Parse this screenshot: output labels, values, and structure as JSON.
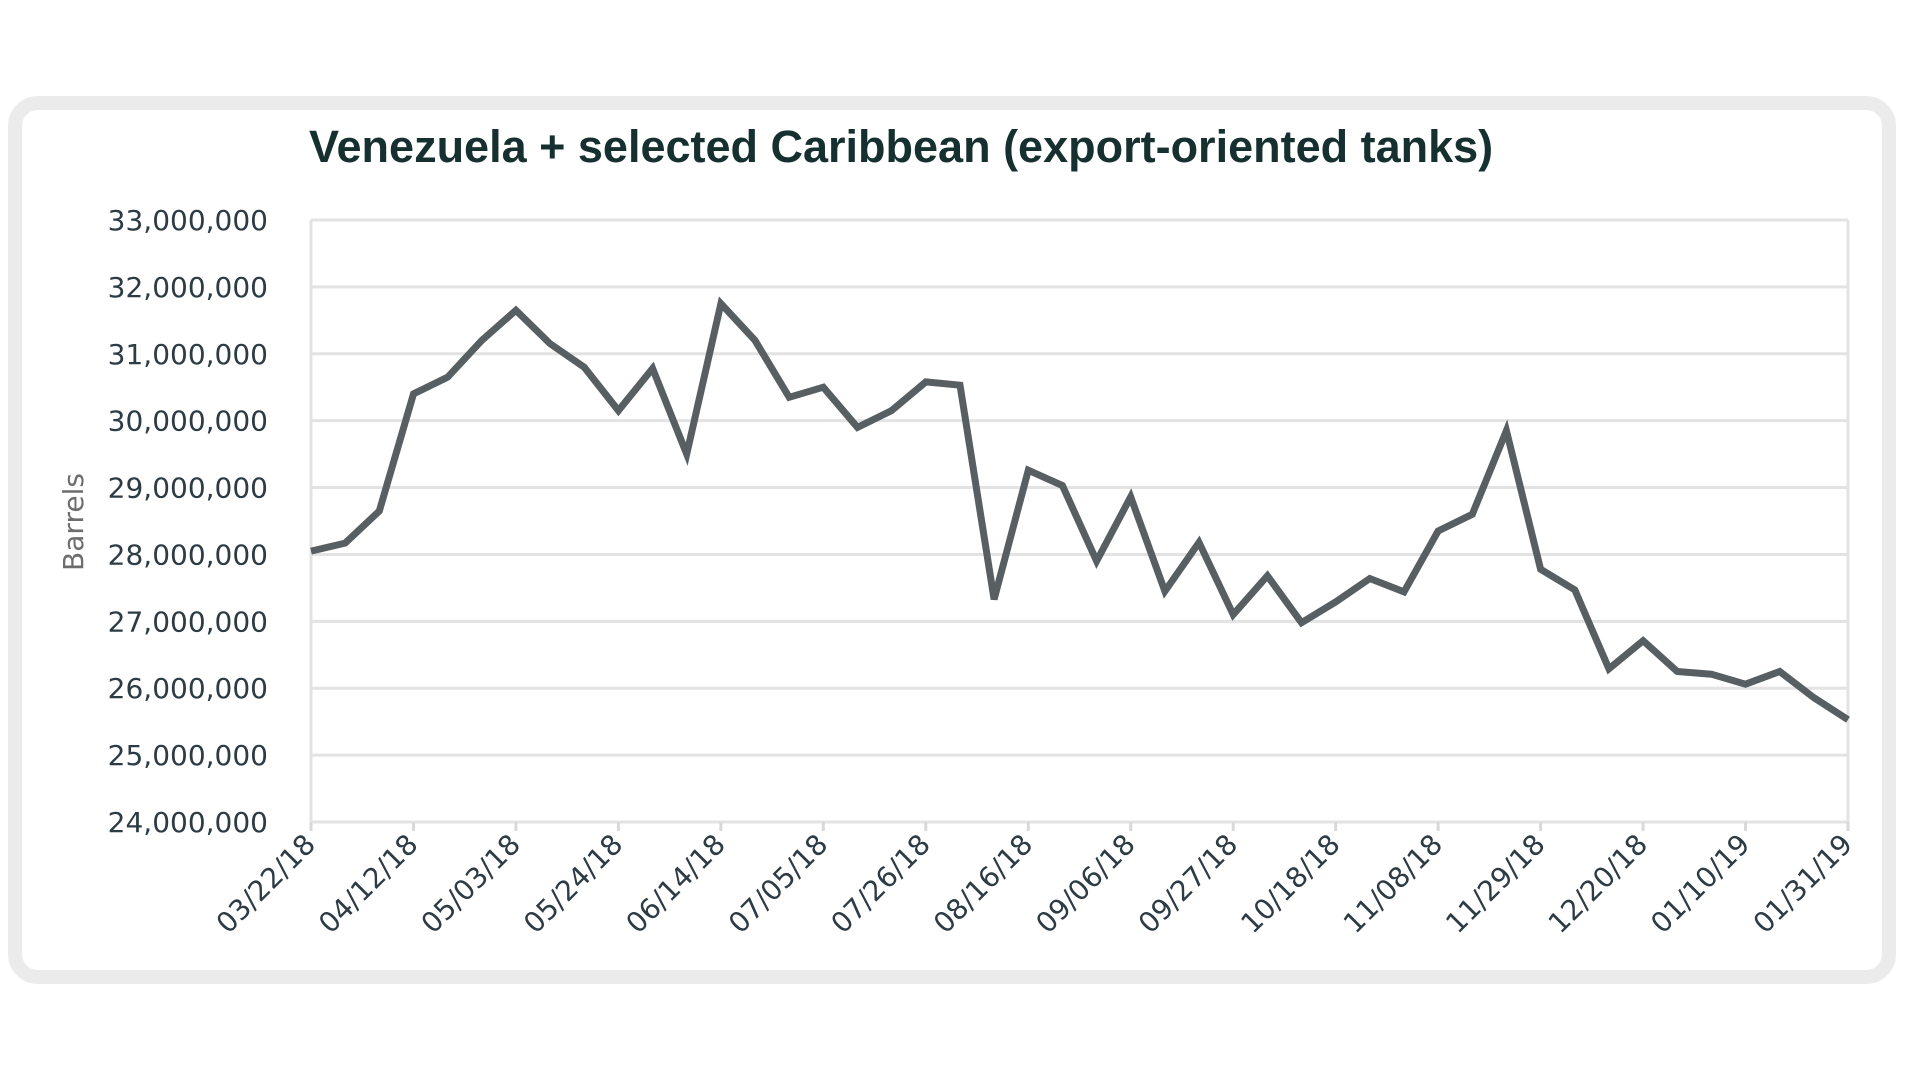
{
  "chart_data": {
    "type": "line",
    "title": "Venezuela + selected Caribbean (export-oriented tanks)",
    "xlabel": "",
    "ylabel": "Barrels",
    "ylim": [
      24000000,
      33000000
    ],
    "y_ticks": [
      "24,000,000",
      "25,000,000",
      "26,000,000",
      "27,000,000",
      "28,000,000",
      "29,000,000",
      "30,000,000",
      "31,000,000",
      "32,000,000",
      "33,000,000"
    ],
    "x_ticks": [
      "03/22/18",
      "04/12/18",
      "05/03/18",
      "05/24/18",
      "06/14/18",
      "07/05/18",
      "07/26/18",
      "08/16/18",
      "09/06/18",
      "09/27/18",
      "10/18/18",
      "11/08/18",
      "11/29/18",
      "12/20/18",
      "01/10/19",
      "01/31/19"
    ],
    "grid": true,
    "legend": "none",
    "series": [
      {
        "color": "#575f63",
        "x": [
          "03/22/18",
          "03/29/18",
          "04/05/18",
          "04/12/18",
          "04/19/18",
          "04/26/18",
          "05/03/18",
          "05/10/18",
          "05/17/18",
          "05/24/18",
          "05/31/18",
          "06/07/18",
          "06/14/18",
          "06/21/18",
          "06/28/18",
          "07/05/18",
          "07/12/18",
          "07/19/18",
          "07/26/18",
          "08/02/18",
          "08/09/18",
          "08/16/18",
          "08/23/18",
          "08/30/18",
          "09/06/18",
          "09/13/18",
          "09/20/18",
          "09/27/18",
          "10/04/18",
          "10/11/18",
          "10/18/18",
          "10/25/18",
          "11/01/18",
          "11/08/18",
          "11/15/18",
          "11/22/18",
          "11/29/18",
          "12/06/18",
          "12/13/18",
          "12/20/18",
          "12/27/18",
          "01/03/19",
          "01/10/19",
          "01/17/19",
          "01/24/19",
          "01/31/19"
        ],
        "values": [
          28050000,
          28170000,
          28650000,
          30400000,
          30650000,
          31200000,
          31650000,
          31150000,
          30800000,
          30150000,
          30780000,
          29500000,
          31750000,
          31200000,
          30350000,
          30500000,
          29900000,
          30150000,
          30580000,
          30530000,
          27330000,
          29260000,
          29030000,
          27900000,
          28860000,
          27450000,
          28180000,
          27100000,
          27680000,
          26980000,
          27290000,
          27640000,
          27440000,
          28350000,
          28600000,
          29850000,
          27780000,
          27470000,
          26290000,
          26710000,
          26250000,
          26210000,
          26060000,
          26250000,
          25860000,
          25530000
        ]
      }
    ]
  }
}
